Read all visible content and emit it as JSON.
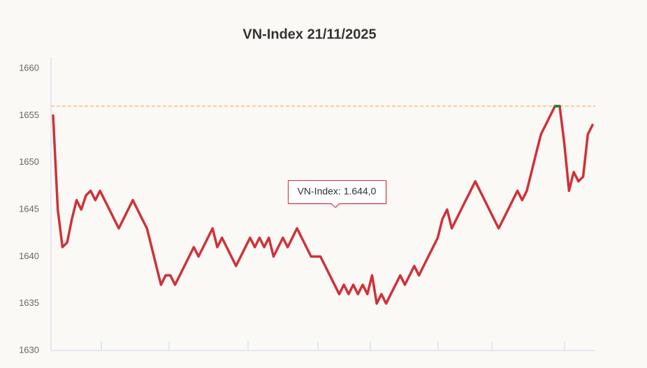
{
  "chart_data": {
    "type": "line",
    "title": "VN-Index 21/11/2025",
    "ylim": [
      1630,
      1661.5
    ],
    "yticks": [
      1630,
      1635,
      1640,
      1645,
      1650,
      1655,
      1660
    ],
    "grid": false,
    "reference_line": 1656,
    "reference_color": "#f0a050",
    "tooltip": "VN-Index: 1.644,0",
    "series": [
      {
        "name": "VN-Index",
        "color": "#d0313a",
        "highlight_color": "#2e7d32",
        "values": [
          1655,
          1645,
          1641,
          1641.5,
          1644,
          1646,
          1645,
          1646.5,
          1647,
          1646,
          1647,
          1646,
          1645,
          1644,
          1643,
          1644,
          1645,
          1646,
          1645,
          1644,
          1643,
          1641,
          1639,
          1637,
          1638,
          1638,
          1637,
          1638,
          1639,
          1640,
          1641,
          1640,
          1641,
          1642,
          1643,
          1641,
          1642,
          1641,
          1640,
          1639,
          1640,
          1641,
          1642,
          1641,
          1642,
          1641,
          1642,
          1640,
          1641,
          1642,
          1641,
          1642,
          1643,
          1642,
          1641,
          1640,
          1640,
          1640,
          1639,
          1638,
          1637,
          1636,
          1637,
          1636,
          1637,
          1636,
          1637,
          1636,
          1638,
          1635,
          1636,
          1635,
          1636,
          1637,
          1638,
          1637,
          1638,
          1639,
          1638,
          1639,
          1640,
          1641,
          1642,
          1644,
          1645,
          1643,
          1644,
          1645,
          1646,
          1647,
          1648,
          1647,
          1646,
          1645,
          1644,
          1643,
          1644,
          1645,
          1646,
          1647,
          1646,
          1647,
          1649,
          1651,
          1653,
          1654,
          1655,
          1656,
          1656,
          1652,
          1647,
          1649,
          1648,
          1648.5,
          1653,
          1654
        ]
      }
    ]
  }
}
